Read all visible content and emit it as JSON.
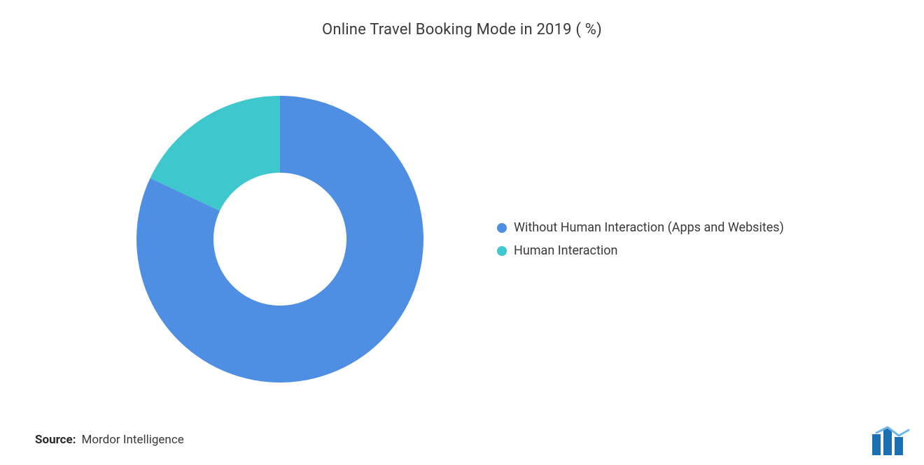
{
  "chart": {
    "type": "donut",
    "title": "Online Travel Booking Mode in 2019 ( %)",
    "title_fontsize": 22,
    "title_color": "#3a3a3a",
    "background_color": "#ffffff",
    "outer_radius": 205,
    "inner_radius": 95,
    "start_angle_deg": 0,
    "series": [
      {
        "label": "Without Human Interaction (Apps and Websites)",
        "value": 82,
        "color": "#4f8fe3"
      },
      {
        "label": "Human Interaction",
        "value": 18,
        "color": "#3ec8ce"
      }
    ],
    "legend": {
      "position": "right",
      "fontsize": 18,
      "text_color": "#3a3a3a",
      "swatch_shape": "circle",
      "swatch_size": 14
    }
  },
  "source": {
    "label": "Source:",
    "text": "Mordor Intelligence",
    "label_fontsize": 17,
    "label_weight": 700,
    "text_fontsize": 17,
    "text_color": "#3a3a3a"
  },
  "logo": {
    "name": "mordor-logo",
    "bar_colors": [
      "#1b6fb3",
      "#1b6fb3",
      "#1b6fb3"
    ],
    "accent_color": "#6fb6e8"
  }
}
